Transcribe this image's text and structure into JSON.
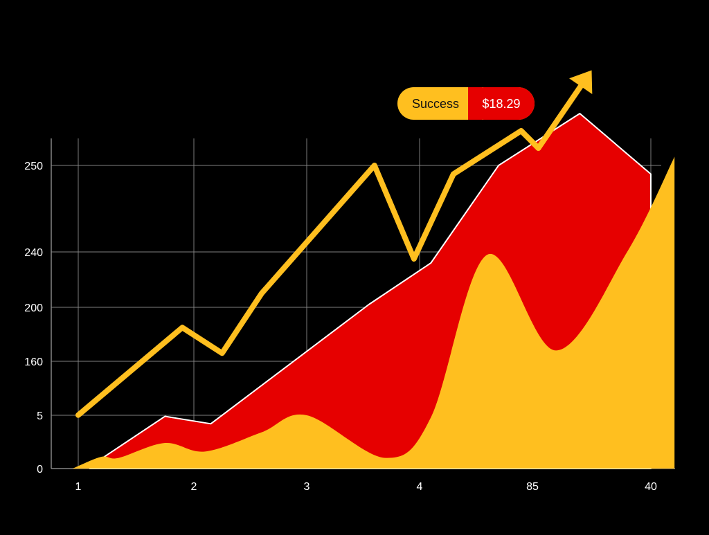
{
  "badge": {
    "label": "Success",
    "value": "$18.29",
    "label_color": "#ffbf1f",
    "value_color": "#e60000"
  },
  "chart_data": {
    "type": "area",
    "title": "",
    "xlabel": "",
    "ylabel": "",
    "x_tick_labels": [
      "1",
      "2",
      "3",
      "4",
      "85",
      "40"
    ],
    "y_tick_labels": [
      "0",
      "5",
      "160",
      "200",
      "240",
      "250"
    ],
    "grid": true,
    "legend": "none",
    "colors": {
      "background": "#000000",
      "red_area": "#e60000",
      "yellow_area": "#ffbf1f",
      "line": "#ffbf1f",
      "grid": "#8a8a8a",
      "text": "#ffffff"
    },
    "series": [
      {
        "kind": "line",
        "points": [
          [
            1,
            5.5
          ],
          [
            1.9,
            185
          ],
          [
            2.25,
            166
          ],
          [
            2.6,
            210
          ],
          [
            3.6,
            250
          ],
          [
            3.95,
            235
          ],
          [
            4.3,
            249
          ],
          [
            4.9,
            254
          ],
          [
            5.05,
            252
          ],
          [
            5.5,
            261
          ]
        ],
        "arrowhead": true
      },
      {
        "kind": "area",
        "fill": "red",
        "points": [
          [
            1.1,
            0.2
          ],
          [
            1.75,
            4.9
          ],
          [
            2.15,
            4.2
          ],
          [
            3.55,
            202
          ],
          [
            4.1,
            232
          ],
          [
            4.7,
            250
          ],
          [
            5.4,
            256
          ],
          [
            6.0,
            249
          ]
        ]
      },
      {
        "kind": "area",
        "fill": "yellow",
        "points": [
          [
            0.95,
            0
          ],
          [
            1.2,
            1.1
          ],
          [
            1.35,
            1.0
          ],
          [
            1.75,
            2.4
          ],
          [
            2.1,
            1.6
          ],
          [
            2.6,
            3.4
          ],
          [
            3.0,
            5.1
          ],
          [
            3.7,
            1.0
          ],
          [
            4.1,
            4.8
          ],
          [
            4.6,
            238
          ],
          [
            5.2,
            168
          ],
          [
            5.8,
            240
          ],
          [
            6.2,
            251
          ]
        ]
      }
    ]
  }
}
